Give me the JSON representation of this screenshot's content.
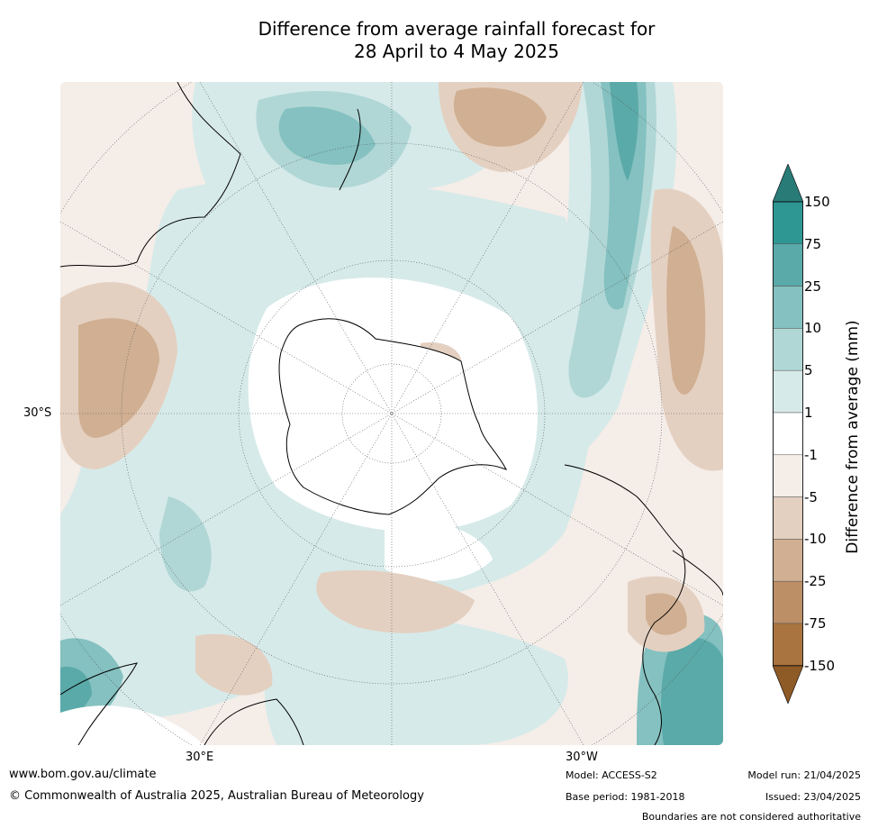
{
  "title_line1": "Difference from average rainfall forecast for",
  "title_line2": "28 April to 4 May 2025",
  "labels": {
    "lat_30s": "30°S",
    "lon_30e": "30°E",
    "lon_30w": "30°W"
  },
  "colorbar": {
    "label": "Difference from average (mm)",
    "ticks": [
      "150",
      "75",
      "25",
      "10",
      "5",
      "1",
      "-1",
      "-5",
      "-10",
      "-25",
      "-75",
      "-150"
    ],
    "colors": {
      "over": "#297b78",
      "bands": [
        "#2e9794",
        "#5aaaa9",
        "#84c1c0",
        "#b0d7d6",
        "#d6eae9",
        "#ffffff",
        "#f5ede8",
        "#e4d0c1",
        "#d0af92",
        "#bc8f67",
        "#a9743f"
      ],
      "under": "#8e5a26"
    }
  },
  "footer": {
    "website": "www.bom.gov.au/climate",
    "copyright": "© Commonwealth of Australia 2025, Australian Bureau of Meteorology",
    "model": "Model: ACCESS-S2",
    "base_period": "Base period: 1981-2018",
    "model_run": "Model run: 21/04/2025",
    "issued": "Issued: 23/04/2025",
    "disclaimer": "Boundaries are not considered authoritative"
  }
}
